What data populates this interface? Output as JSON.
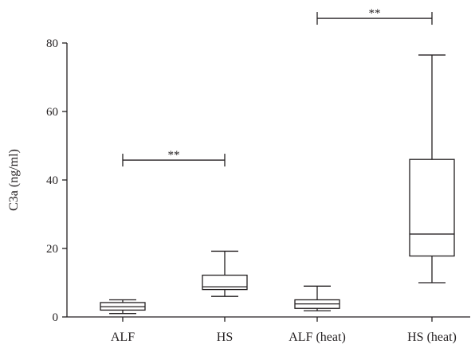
{
  "chart_data": {
    "type": "box",
    "ylabel": "C3a (ng/ml)",
    "xlabel": "",
    "ylim": [
      0,
      80
    ],
    "yticks": [
      0,
      20,
      40,
      60,
      80
    ],
    "categories": [
      "ALF",
      "HS",
      "ALF (heat)",
      "HS (heat)"
    ],
    "boxes": [
      {
        "category": "ALF",
        "min": 1.0,
        "q1": 2.0,
        "median": 3.0,
        "q3": 4.2,
        "max": 5.0
      },
      {
        "category": "HS",
        "min": 6.0,
        "q1": 8.0,
        "median": 8.8,
        "q3": 12.2,
        "max": 19.2
      },
      {
        "category": "ALF (heat)",
        "min": 1.8,
        "q1": 2.5,
        "median": 3.8,
        "q3": 5.0,
        "max": 9.0
      },
      {
        "category": "HS (heat)",
        "min": 10.0,
        "q1": 17.8,
        "median": 24.2,
        "q3": 46.0,
        "max": 76.5
      }
    ],
    "significance": [
      {
        "from": "ALF",
        "to": "HS",
        "y": 45.8,
        "label": "**"
      },
      {
        "from": "ALF (heat)",
        "to": "HS (heat)",
        "y": 87.2,
        "label": "**"
      }
    ],
    "grid": false,
    "colors": {
      "stroke": "#231f20",
      "box_fill": "#ffffff"
    }
  }
}
